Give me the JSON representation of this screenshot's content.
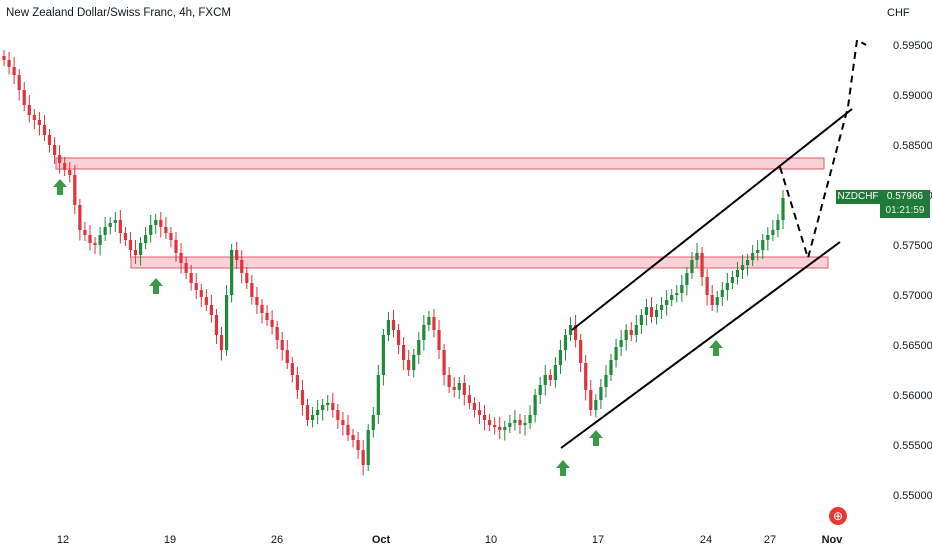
{
  "title": "New Zealand Dollar/Swiss Franc, 4h, FXCM",
  "currency": "CHF",
  "badge": {
    "symbol": "NZDCHF",
    "price": "0.57966",
    "countdown": "01:21:59",
    "color": "#1f7a3a"
  },
  "icons": {
    "reset": "reset-icon"
  },
  "colors": {
    "up": "#1f8a3c",
    "down": "#e0323c",
    "zone_fill": "#f8d2d6",
    "zone_stroke": "#e35b6b",
    "arrow": "#3a9a4a"
  },
  "chart_data": {
    "type": "candlestick",
    "title": "New Zealand Dollar/Swiss Franc, 4h, FXCM",
    "ylabel": "CHF",
    "ylim": [
      0.5485,
      0.597
    ],
    "y_ticks": [
      "0.59500",
      "0.59000",
      "0.58500",
      "0.58000",
      "0.57500",
      "0.57000",
      "0.56500",
      "0.56000",
      "0.55500",
      "0.55000"
    ],
    "x_ticks": [
      {
        "label": "12",
        "bold": false
      },
      {
        "label": "19",
        "bold": false
      },
      {
        "label": "26",
        "bold": false
      },
      {
        "label": "Oct",
        "bold": true
      },
      {
        "label": "10",
        "bold": false
      },
      {
        "label": "17",
        "bold": false
      },
      {
        "label": "24",
        "bold": false
      },
      {
        "label": "27",
        "bold": false
      },
      {
        "label": "Nov",
        "bold": true
      }
    ],
    "series_close": [
      0.5935,
      0.5928,
      0.592,
      0.5905,
      0.589,
      0.588,
      0.5875,
      0.587,
      0.586,
      0.585,
      0.584,
      0.5832,
      0.5825,
      0.582,
      0.579,
      0.5765,
      0.576,
      0.5752,
      0.575,
      0.576,
      0.5768,
      0.5772,
      0.5775,
      0.5762,
      0.5755,
      0.5745,
      0.574,
      0.5752,
      0.576,
      0.577,
      0.5775,
      0.5768,
      0.5762,
      0.5755,
      0.5742,
      0.5732,
      0.5722,
      0.5712,
      0.5705,
      0.5698,
      0.569,
      0.568,
      0.566,
      0.5645,
      0.57,
      0.5745,
      0.5735,
      0.5722,
      0.5712,
      0.5698,
      0.569,
      0.5682,
      0.5675,
      0.5668,
      0.5655,
      0.5645,
      0.5632,
      0.562,
      0.5605,
      0.559,
      0.5575,
      0.558,
      0.5585,
      0.559,
      0.5592,
      0.5585,
      0.5575,
      0.557,
      0.556,
      0.5555,
      0.5545,
      0.553,
      0.5565,
      0.558,
      0.562,
      0.566,
      0.5675,
      0.5665,
      0.565,
      0.5635,
      0.5625,
      0.564,
      0.5655,
      0.567,
      0.5678,
      0.5665,
      0.5645,
      0.562,
      0.5608,
      0.5605,
      0.5612,
      0.56,
      0.5592,
      0.5585,
      0.558,
      0.5575,
      0.557,
      0.5568,
      0.5565,
      0.5568,
      0.5572,
      0.5575,
      0.557,
      0.5572,
      0.558,
      0.56,
      0.561,
      0.562,
      0.5615,
      0.563,
      0.5645,
      0.566,
      0.567,
      0.5655,
      0.5632,
      0.5605,
      0.5585,
      0.5595,
      0.5608,
      0.562,
      0.5635,
      0.5648,
      0.5655,
      0.5665,
      0.566,
      0.567,
      0.568,
      0.5688,
      0.5678,
      0.5685,
      0.569,
      0.5695,
      0.57,
      0.5702,
      0.571,
      0.5722,
      0.5735,
      0.5742,
      0.5718,
      0.57,
      0.569,
      0.5698,
      0.5705,
      0.5712,
      0.5718,
      0.5725,
      0.573,
      0.5735,
      0.5742,
      0.5745,
      0.5755,
      0.576,
      0.5765,
      0.5775,
      0.5797
    ],
    "zones": [
      {
        "from": 0.5826,
        "to": 0.5837
      },
      {
        "from": 0.5727,
        "to": 0.5738
      }
    ],
    "channel": {
      "upper": [
        [
          572,
          0.5665
        ],
        [
          852,
          0.5886
        ]
      ],
      "lower": [
        [
          561,
          0.5547
        ],
        [
          840,
          0.5753
        ]
      ]
    },
    "projection": [
      [
        780,
        0.5828
      ],
      [
        808,
        0.5737
      ],
      [
        848,
        0.5888
      ],
      [
        857,
        0.5955
      ],
      [
        866,
        0.595
      ]
    ],
    "support_arrows": [
      {
        "x": 60,
        "price": 0.5816
      },
      {
        "x": 156,
        "price": 0.5717
      },
      {
        "x": 563,
        "price": 0.5535
      },
      {
        "x": 596,
        "price": 0.5565
      },
      {
        "x": 716,
        "price": 0.5655
      }
    ]
  }
}
